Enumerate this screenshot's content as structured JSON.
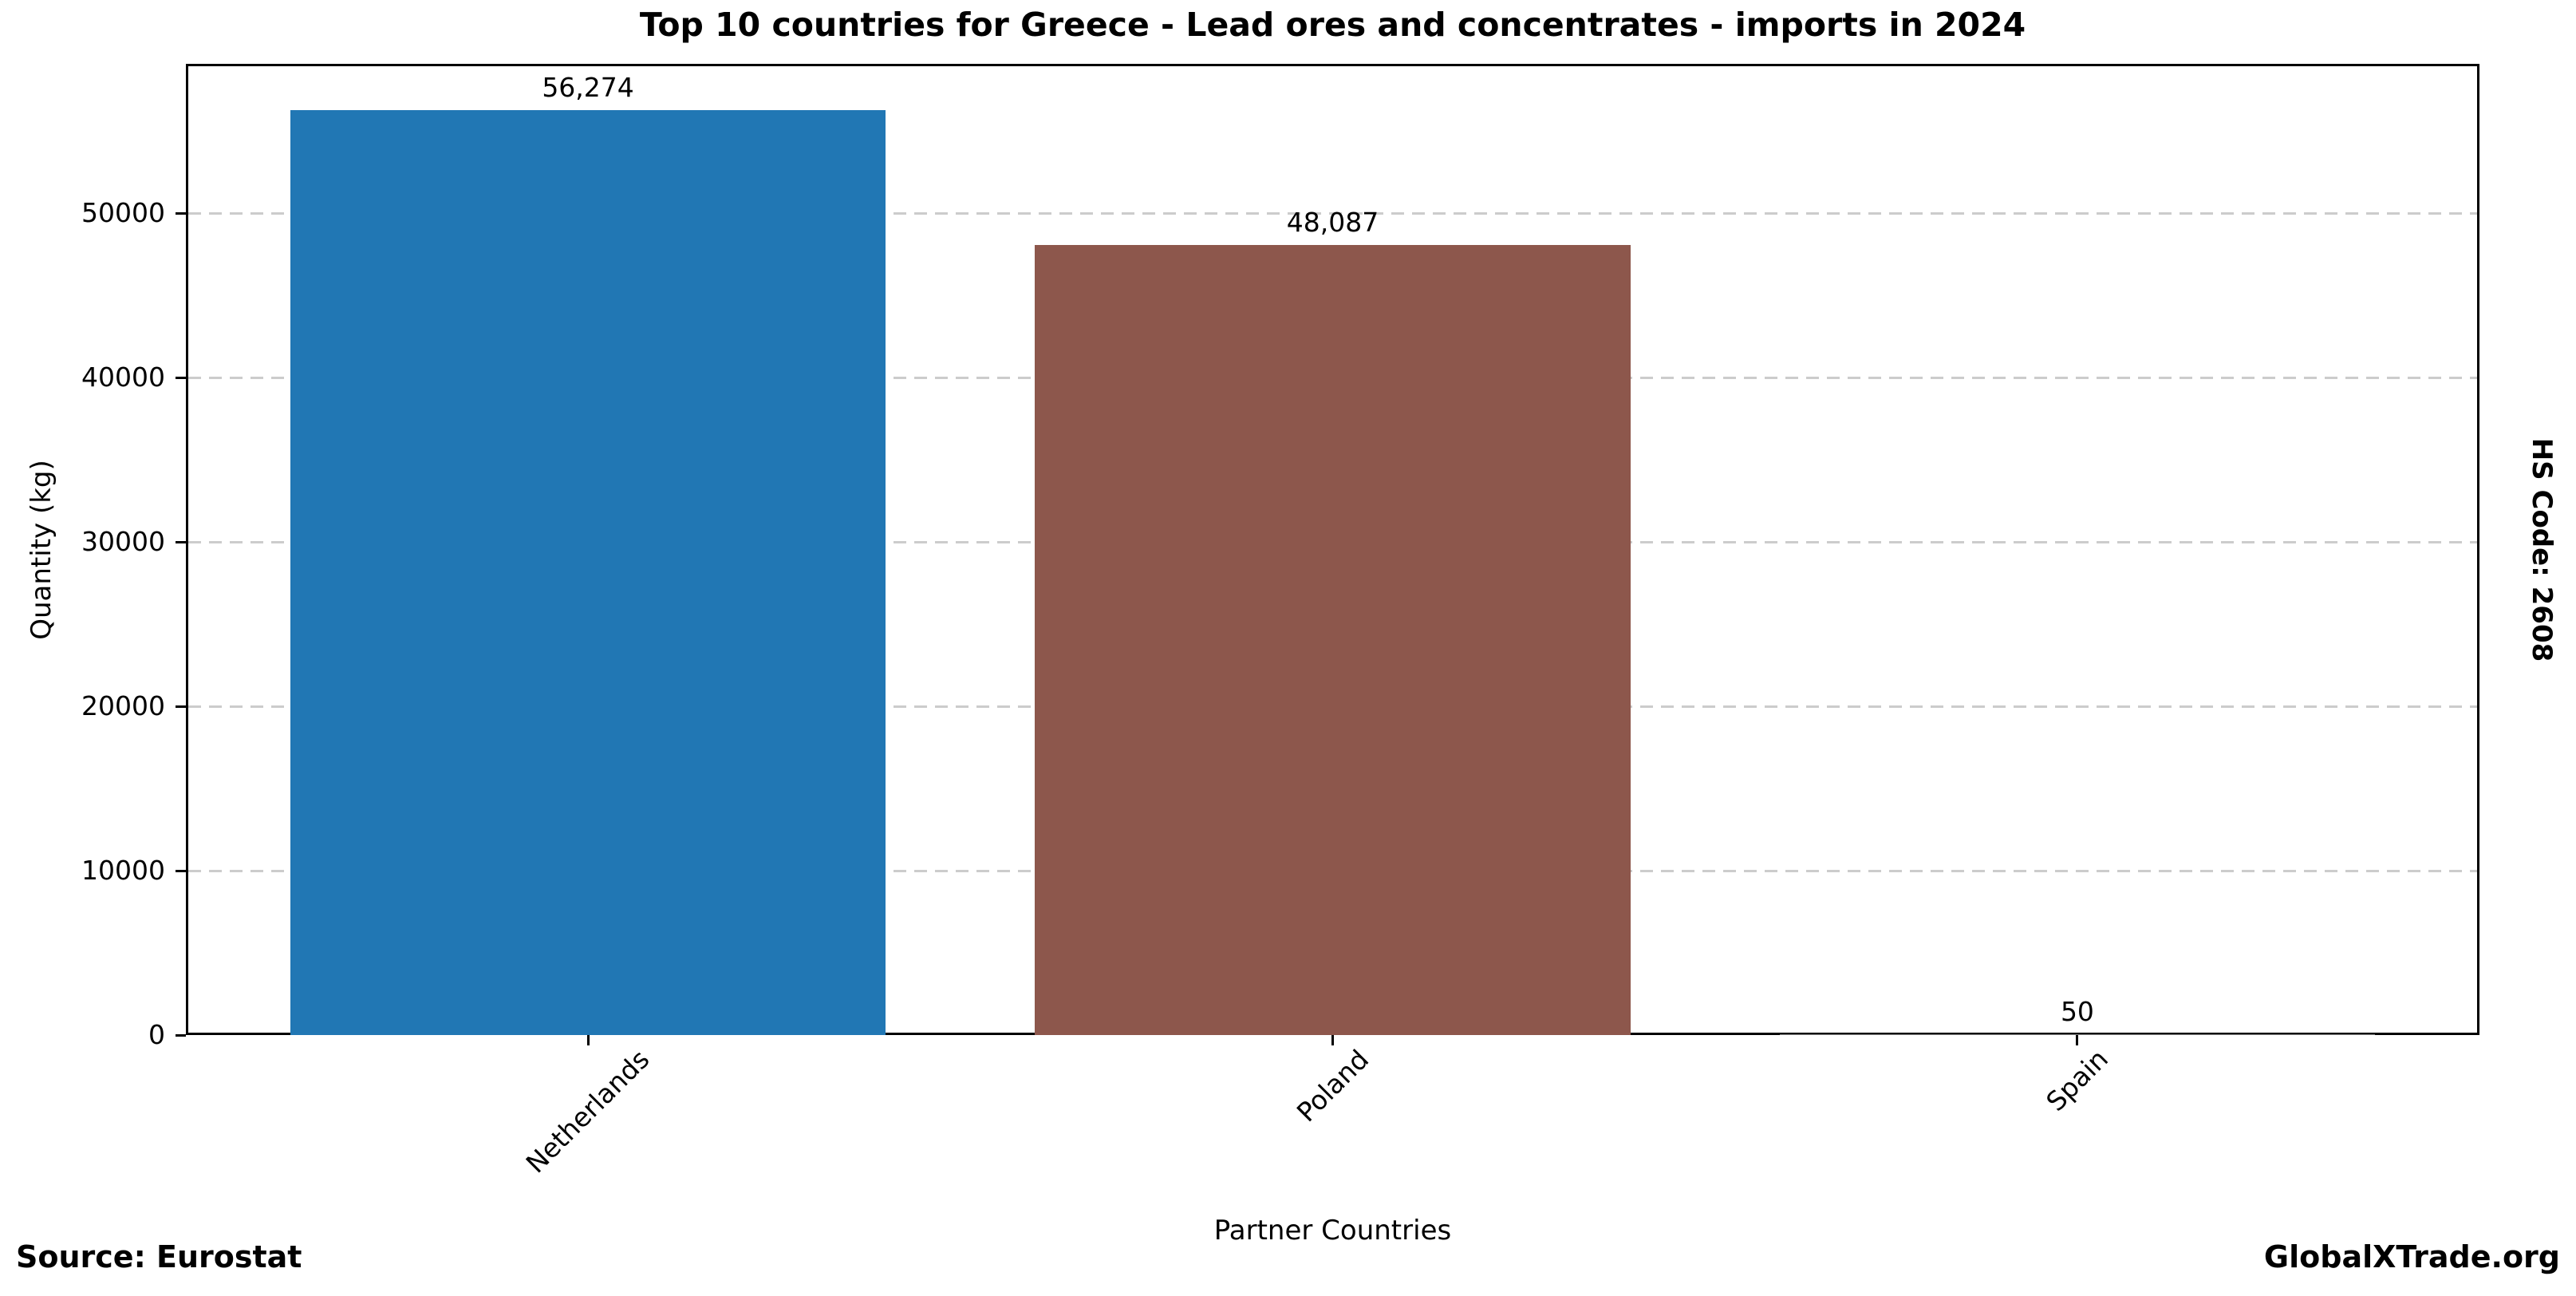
{
  "chart_data": {
    "type": "bar",
    "title": "Top 10 countries for Greece - Lead ores and concentrates - imports in 2024",
    "xlabel": "Partner Countries",
    "ylabel": "Quantity (kg)",
    "categories": [
      "Netherlands",
      "Poland",
      "Spain"
    ],
    "values": [
      56274,
      48087,
      50
    ],
    "value_labels": [
      "56,274",
      "48,087",
      "50"
    ],
    "bar_colors": [
      "#2177b4",
      "#8d574c",
      "#7f7f7f"
    ],
    "ylim": [
      0,
      59088
    ],
    "yticks": [
      0,
      10000,
      20000,
      30000,
      40000,
      50000
    ],
    "ytick_labels": [
      "0",
      "10000",
      "20000",
      "30000",
      "40000",
      "50000"
    ],
    "grid": "horizontal-dashed",
    "gridline_color": "#cccccc",
    "legend": "none"
  },
  "side_label": "HS Code: 2608",
  "footer": {
    "source": "Source: Eurostat",
    "brand": "GlobalXTrade.org"
  }
}
